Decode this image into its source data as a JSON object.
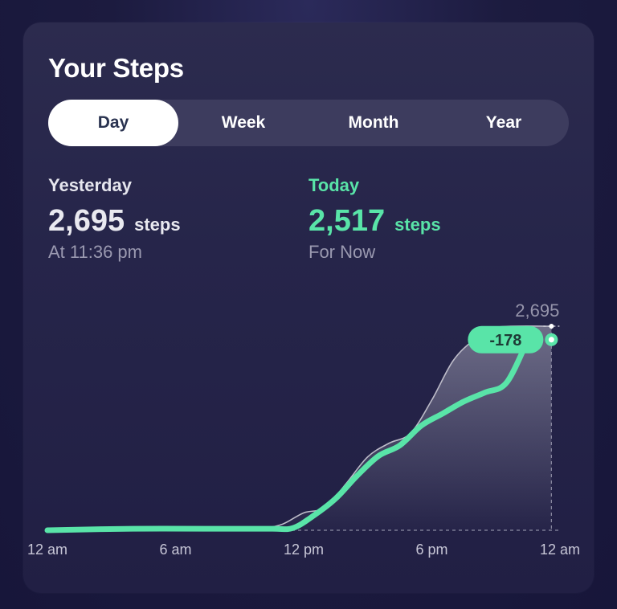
{
  "header": {
    "title": "Your Steps"
  },
  "tabs": [
    {
      "label": "Day",
      "active": true
    },
    {
      "label": "Week",
      "active": false
    },
    {
      "label": "Month",
      "active": false
    },
    {
      "label": "Year",
      "active": false
    }
  ],
  "yesterday": {
    "label": "Yesterday",
    "value": "2,695",
    "unit": "steps",
    "sub": "At 11:36 pm"
  },
  "today": {
    "label": "Today",
    "value": "2,517",
    "unit": "steps",
    "sub": "For Now"
  },
  "colors": {
    "accent": "#59e4a8",
    "previous_line": "#bdbcc9",
    "card": "#26254a"
  },
  "chart_data": {
    "type": "line",
    "x_ticks": [
      "12 am",
      "6 am",
      "12 pm",
      "6 pm",
      "12 am"
    ],
    "xlim": [
      0,
      24
    ],
    "ylim": [
      0,
      2695
    ],
    "series": [
      {
        "role": "today",
        "x": [
          0,
          4,
          8,
          10.5,
          11.5,
          12.5,
          13.5,
          14.5,
          15.5,
          16.5,
          17.5,
          18.5,
          19.5,
          20.5,
          21.5,
          22.5
        ],
        "y": [
          0,
          20,
          20,
          20,
          30,
          200,
          420,
          720,
          980,
          1120,
          1380,
          1540,
          1700,
          1820,
          1950,
          2517
        ]
      },
      {
        "role": "yesterday",
        "x": [
          0,
          4,
          8,
          10,
          11,
          12,
          13,
          14,
          15,
          16,
          17,
          18,
          19,
          20,
          21,
          23.6
        ],
        "y": [
          0,
          20,
          20,
          30,
          80,
          230,
          300,
          620,
          970,
          1150,
          1280,
          1720,
          2240,
          2520,
          2680,
          2695
        ]
      }
    ],
    "markers": {
      "previous_total": "2,695",
      "difference": "-178"
    }
  }
}
